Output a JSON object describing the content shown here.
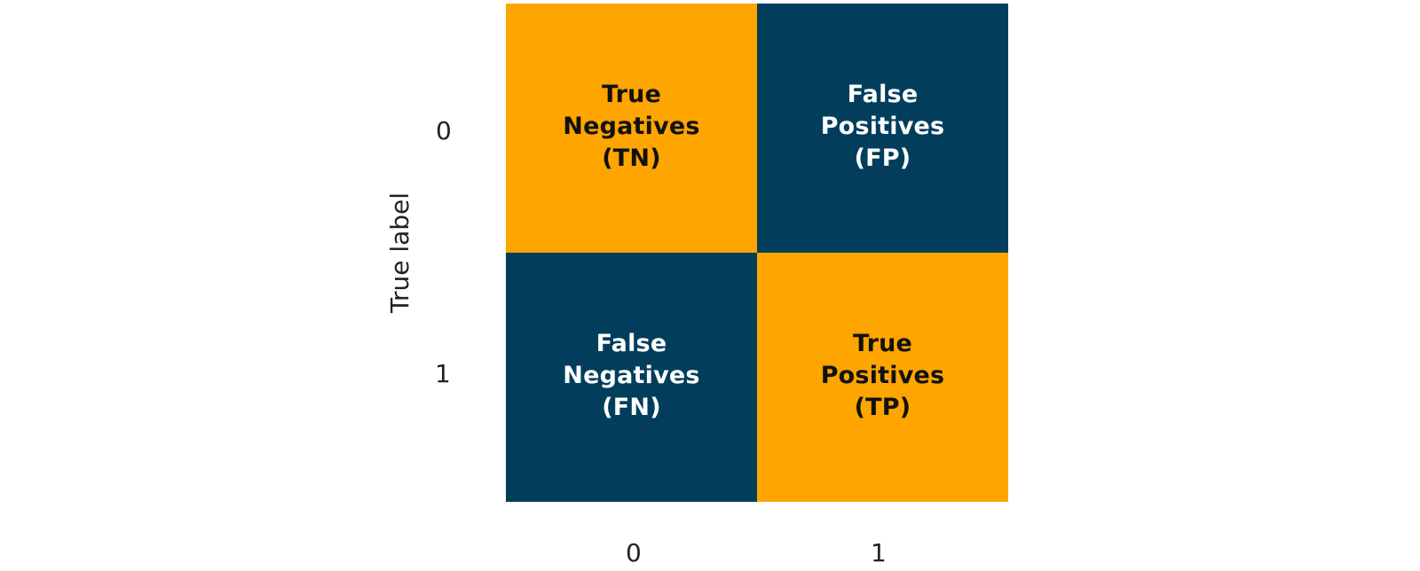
{
  "y_axis": {
    "label": "True label",
    "ticks": [
      "0",
      "1"
    ]
  },
  "x_axis": {
    "ticks": [
      "0",
      "1"
    ]
  },
  "cells": {
    "tn": {
      "lines": [
        "True",
        "Negatives",
        "(TN)"
      ]
    },
    "fp": {
      "lines": [
        "False",
        "Positives",
        "(FP)"
      ]
    },
    "fn": {
      "lines": [
        "False",
        "Negatives",
        "(FN)"
      ]
    },
    "tp": {
      "lines": [
        "True",
        "Positives",
        "(TP)"
      ]
    }
  },
  "colors": {
    "orange": "#FFA500",
    "navy": "#023E5C"
  }
}
